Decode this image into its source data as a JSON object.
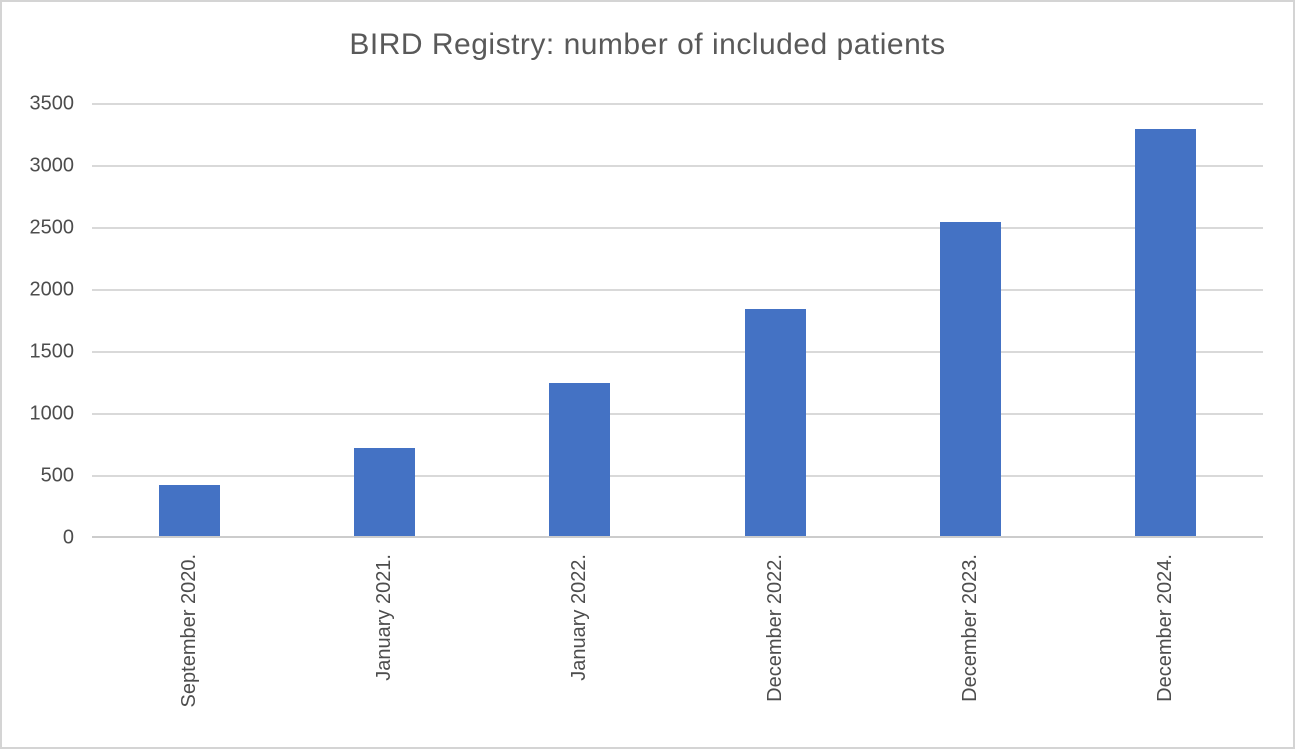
{
  "figure": {
    "background": "#ffffff",
    "border_color": "#d4d4d4"
  },
  "chart_data": {
    "type": "bar",
    "title": "BIRD Registry: number of included patients",
    "categories": [
      "September 2020.",
      "January 2021.",
      "January 2022.",
      "December 2022.",
      "December 2023.",
      "December 2024."
    ],
    "values": [
      410,
      710,
      1230,
      1830,
      2530,
      3280
    ],
    "xlabel": "",
    "ylabel": "",
    "ylim": [
      0,
      3500
    ],
    "yticks": [
      0,
      500,
      1000,
      1500,
      2000,
      2500,
      3000,
      3500
    ],
    "grid": true,
    "legend": false,
    "bar_color": "#4472C4",
    "title_color": "#595959",
    "tick_label_color": "#4d4d4d",
    "gridline_color": "#d9d9d9",
    "axis_line_color": "#cccccc"
  }
}
